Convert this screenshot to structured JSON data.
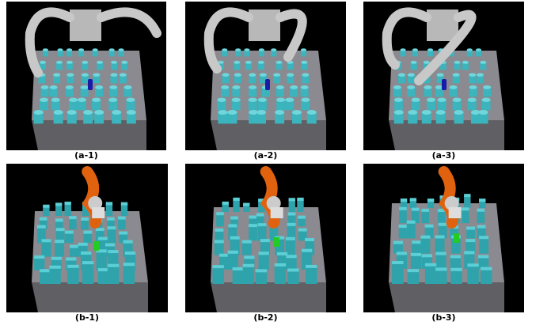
{
  "captions": [
    "(a-1)",
    "(a-2)",
    "(a-3)",
    "(b-1)",
    "(b-2)",
    "(b-3)"
  ]
}
